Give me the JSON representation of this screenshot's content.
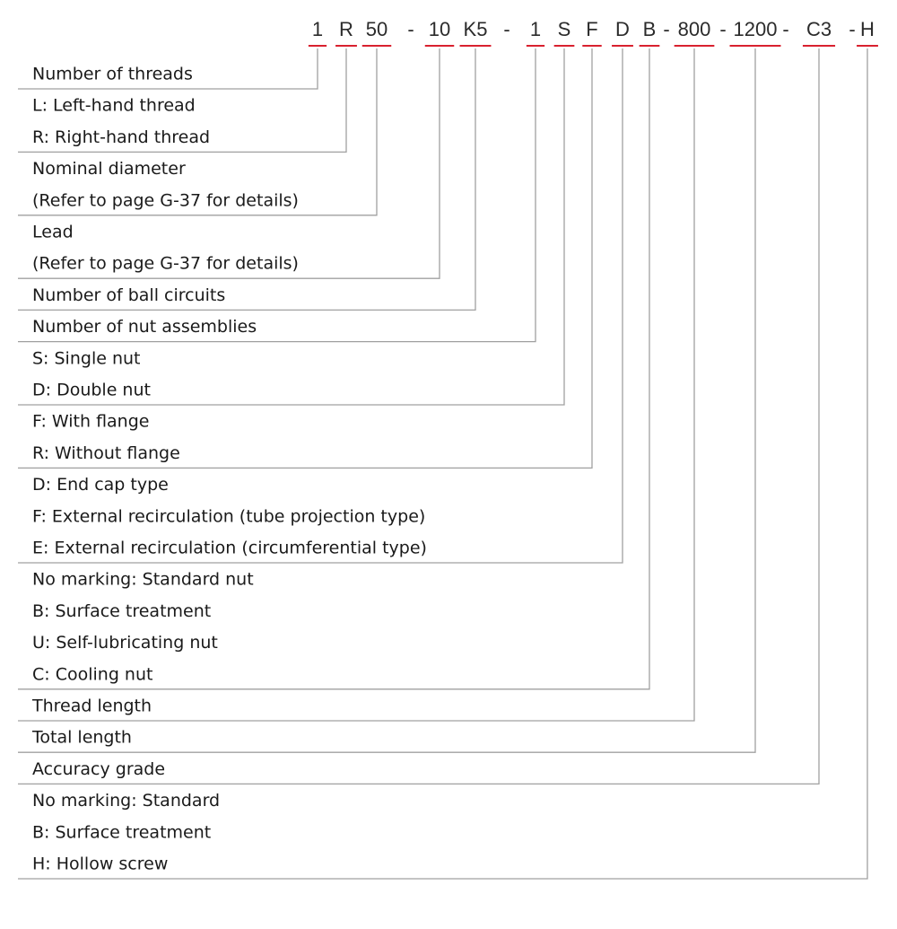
{
  "code": [
    "1",
    "R",
    "50",
    "-",
    "10",
    "K5",
    "-",
    "1",
    "S",
    "F",
    "D",
    "B",
    "-",
    "800",
    "-",
    "1200",
    "-",
    "C3",
    "-",
    "H"
  ],
  "groups": [
    {
      "lines": [
        "Number of threads"
      ]
    },
    {
      "lines": [
        "L: Left-hand thread",
        "R: Right-hand thread"
      ]
    },
    {
      "lines": [
        "Nominal diameter",
        "(Refer to page G-37 for details)"
      ]
    },
    {
      "lines": [
        "Lead",
        "(Refer to page G-37 for details)"
      ]
    },
    {
      "lines": [
        "Number of ball circuits"
      ]
    },
    {
      "lines": [
        "Number of nut assemblies"
      ]
    },
    {
      "lines": [
        "S: Single nut",
        "D: Double nut"
      ]
    },
    {
      "lines": [
        "F: With flange",
        "R: Without flange"
      ]
    },
    {
      "lines": [
        "D: End cap type",
        "F: External recirculation (tube projection type)",
        "E: External recirculation (circumferential type)"
      ]
    },
    {
      "lines": [
        "No marking: Standard nut",
        "B: Surface treatment",
        "U: Self-lubricating nut",
        "C: Cooling nut"
      ]
    },
    {
      "lines": [
        "Thread length"
      ]
    },
    {
      "lines": [
        "Total length"
      ]
    },
    {
      "lines": [
        "Accuracy grade"
      ]
    },
    {
      "lines": [
        "No marking: Standard",
        "B: Surface treatment",
        "H: Hollow screw"
      ]
    }
  ]
}
